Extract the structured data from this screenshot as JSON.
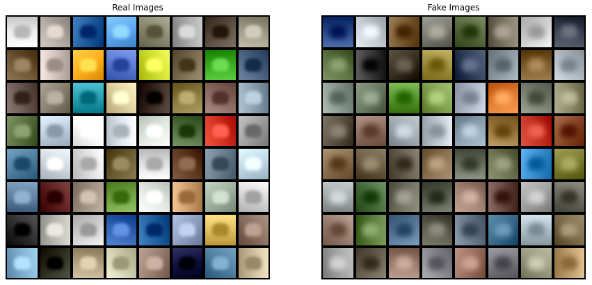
{
  "panels": [
    {
      "title": "Real Images",
      "kind": "real",
      "tiles": [
        [
          "#eeeeee",
          "#b0a8a0",
          "#1f5da0",
          "#60a8f0",
          "#8b8a70",
          "#a8a8a8",
          "#5a4d40",
          "#9f9a88"
        ],
        [
          "#6b5230",
          "#d4c4c0",
          "#ffb020",
          "#5a7ad0",
          "#cfe030",
          "#7a6a50",
          "#3aaa20",
          "#4a6280"
        ],
        [
          "#6a5850",
          "#8a8070",
          "#2a9fb0",
          "#e0d0a0",
          "#3a2a20",
          "#8a7a40",
          "#8a6a60",
          "#8aa0b0"
        ],
        [
          "#5a7040",
          "#c0d0e0",
          "#ffffff",
          "#e0e8f0",
          "#e0e8e0",
          "#507040",
          "#d03020",
          "#a0a0a0"
        ],
        [
          "#5080a0",
          "#d0d8e0",
          "#e0e0e0",
          "#6a5a30",
          "#e0e0e0",
          "#603a20",
          "#6a8090",
          "#c0d8e8"
        ],
        [
          "#6080a0",
          "#602020",
          "#a09080",
          "#70a040",
          "#e0e8e0",
          "#d0a070",
          "#a0b0a0",
          "#d8d8d8"
        ],
        [
          "#303030",
          "#b8b8b0",
          "#d0d0d0",
          "#3060b0",
          "#2060a0",
          "#90a0c0",
          "#e0c060",
          "#8a7060"
        ],
        [
          "#80b0d0",
          "#303020",
          "#b0a080",
          "#d0d0b0",
          "#9a8070",
          "#101040",
          "#5080a0",
          "#d0c0a0"
        ]
      ]
    },
    {
      "title": "Fake Images",
      "kind": "fake",
      "tiles": [
        [
          "#2a4a8a",
          "#c0c8d0",
          "#7a5a30",
          "#7a7a70",
          "#5a6a40",
          "#7a7260",
          "#d0d0d0",
          "#3a4050"
        ],
        [
          "#5a7040",
          "#3a3a3a",
          "#3a3020",
          "#a09040",
          "#30405a",
          "#8a9aa0",
          "#7a5a2a",
          "#b0b8c0"
        ],
        [
          "#8a9a90",
          "#6a7a60",
          "#5a9a30",
          "#80a050",
          "#b0b8c8",
          "#e07a30",
          "#7a8070",
          "#8a8a6a"
        ],
        [
          "#5a5040",
          "#907060",
          "#a0a8b0",
          "#c0c8d0",
          "#8aa0b0",
          "#9a7a40",
          "#c03020",
          "#8a4a2a"
        ],
        [
          "#8a7050",
          "#6a5a40",
          "#6a6050",
          "#8a7050",
          "#6a7060",
          "#6a7050",
          "#3a90d0",
          "#7a7a30"
        ],
        [
          "#a0a8a8",
          "#4a7040",
          "#707060",
          "#5a6050",
          "#a08070",
          "#6a4a40",
          "#a0a0a0",
          "#6a6a60"
        ],
        [
          "#9a8070",
          "#5a7a3a",
          "#5a7a9a",
          "#5a5a4a",
          "#6a7a8a",
          "#3a6a8a",
          "#b0c0c8",
          "#7a6a4a"
        ],
        [
          "#a0a0a0",
          "#6a6050",
          "#9a7a6a",
          "#8a8a90",
          "#9a7060",
          "#7a7a80",
          "#9a9a80",
          "#c0a070"
        ]
      ]
    }
  ]
}
